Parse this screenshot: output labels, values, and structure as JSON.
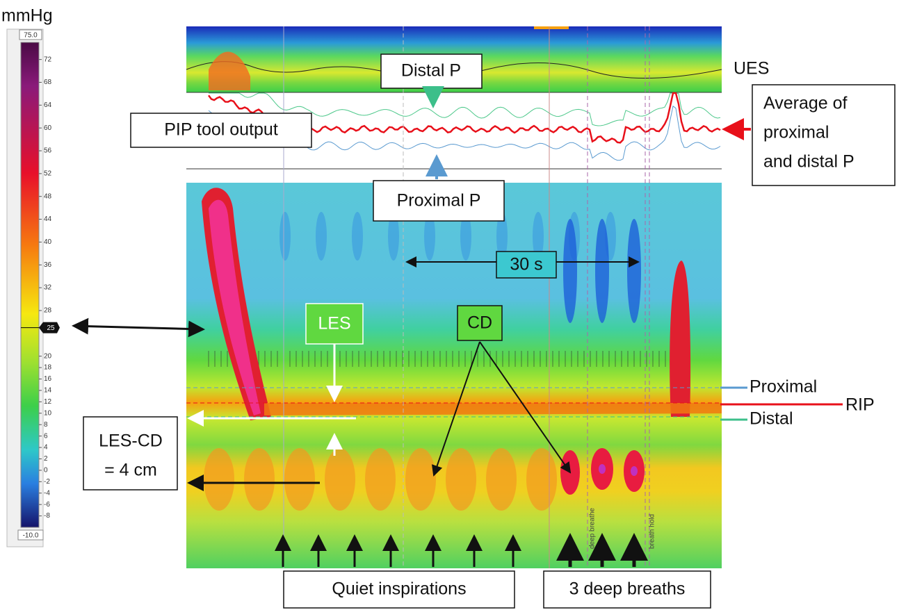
{
  "colorbar": {
    "unit": "mmHg",
    "max": {
      "value": 75,
      "label": "75.0"
    },
    "min": {
      "value": -10,
      "label": "-10.0"
    },
    "ticks": [
      72,
      68,
      64,
      60,
      56,
      52,
      48,
      44,
      40,
      36,
      32,
      28,
      20,
      18,
      16,
      14,
      12,
      10,
      8,
      6,
      4,
      2,
      0,
      -2,
      -4,
      -6,
      -8
    ],
    "marker": 25
  },
  "annotations": {
    "distal_p": "Distal P",
    "ues": "UES",
    "average": [
      "Average of",
      "proximal",
      "and distal P"
    ],
    "pip_tool_output": "PIP tool output",
    "proximal_p": "Proximal P",
    "duration": "30 s",
    "les": "LES",
    "cd": "CD",
    "les_cd": [
      "LES-CD",
      "= 4 cm"
    ],
    "proximal": "Proximal",
    "rip": "RIP",
    "distal": "Distal",
    "quiet_inspirations": "Quiet inspirations",
    "deep_breaths": "3 deep breaths",
    "deep_breathe_marker": "deep breathe",
    "breath_hold_marker": "breath hold"
  }
}
